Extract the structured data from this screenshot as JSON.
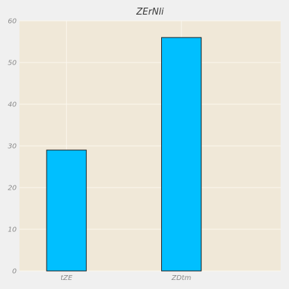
{
  "chart_data": {
    "type": "bar",
    "title": "ZErNli",
    "categories": [
      "tZE",
      "ZDtm"
    ],
    "values": [
      29,
      56
    ],
    "ylim": [
      0,
      60
    ],
    "yticks": [
      0,
      10,
      20,
      30,
      40,
      50,
      60
    ],
    "xlabel": "",
    "ylabel": "",
    "grid": true
  },
  "colors": {
    "page_background": "#f0f0f0",
    "plot_background": "#f0e8d8",
    "grid": "#fbf7ee",
    "bar_fill": "#00bfff",
    "bar_edge": "#1a1a1a"
  }
}
